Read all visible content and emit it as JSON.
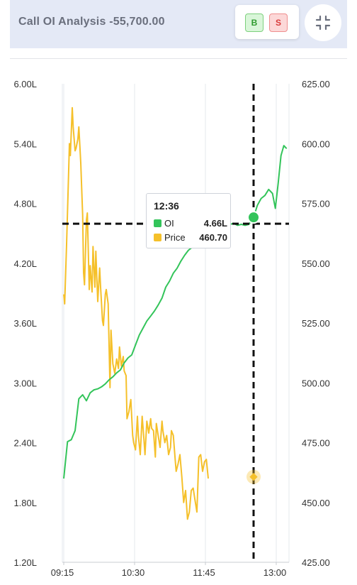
{
  "header": {
    "title": "Call OI Analysis -55,700.00",
    "buy_label": "B",
    "sell_label": "S"
  },
  "colors": {
    "oi": "#33c45a",
    "price": "#f5c02a",
    "crosshair": "#111111",
    "header_bg": "#e4e9f6"
  },
  "icons": {
    "collapse": "collapse-arrows-icon"
  },
  "tooltip": {
    "time": "12:36",
    "oi_label": "OI",
    "oi_value": "4.66L",
    "price_label": "Price",
    "price_value": "460.70"
  },
  "chart_data": {
    "type": "line",
    "x_ticks": [
      "09:15",
      "10:30",
      "11:45",
      "13:00"
    ],
    "left_axis": {
      "ticks": [
        "6.00L",
        "5.40L",
        "4.80L",
        "4.20L",
        "3.60L",
        "3.00L",
        "2.40L",
        "1.80L",
        "1.20L"
      ],
      "range_lakh": [
        1.2,
        6.0
      ]
    },
    "right_axis": {
      "ticks": [
        "625.00",
        "600.00",
        "575.00",
        "550.00",
        "525.00",
        "500.00",
        "475.00",
        "450.00",
        "425.00"
      ],
      "range": [
        425,
        625
      ]
    },
    "grid": "vertical",
    "crosshair": {
      "time": "12:36",
      "oi_lakh": 4.66,
      "price": 460.7
    },
    "series": [
      {
        "name": "OI",
        "axis": "left",
        "unit": "lakh",
        "points": [
          [
            "09:15",
            2.04
          ],
          [
            "09:19",
            2.41
          ],
          [
            "09:23",
            2.43
          ],
          [
            "09:27",
            2.52
          ],
          [
            "09:31",
            2.84
          ],
          [
            "09:35",
            2.88
          ],
          [
            "09:39",
            2.82
          ],
          [
            "09:43",
            2.9
          ],
          [
            "09:47",
            2.93
          ],
          [
            "09:51",
            2.94
          ],
          [
            "09:55",
            2.96
          ],
          [
            "09:59",
            2.99
          ],
          [
            "10:03",
            3.03
          ],
          [
            "10:07",
            3.06
          ],
          [
            "10:11",
            3.1
          ],
          [
            "10:15",
            3.13
          ],
          [
            "10:19",
            3.2
          ],
          [
            "10:23",
            3.25
          ],
          [
            "10:27",
            3.28
          ],
          [
            "10:31",
            3.38
          ],
          [
            "10:35",
            3.48
          ],
          [
            "10:39",
            3.55
          ],
          [
            "10:43",
            3.62
          ],
          [
            "10:47",
            3.67
          ],
          [
            "10:51",
            3.72
          ],
          [
            "10:55",
            3.78
          ],
          [
            "10:59",
            3.85
          ],
          [
            "11:03",
            3.96
          ],
          [
            "11:07",
            4.02
          ],
          [
            "11:11",
            4.1
          ],
          [
            "11:15",
            4.15
          ],
          [
            "11:19",
            4.22
          ],
          [
            "11:23",
            4.28
          ],
          [
            "11:27",
            4.33
          ],
          [
            "11:31",
            4.36
          ],
          [
            "11:35",
            4.4
          ],
          [
            "11:39",
            4.45
          ],
          [
            "11:43",
            4.52
          ],
          [
            "11:47",
            4.55
          ],
          [
            "11:51",
            4.58
          ],
          [
            "11:55",
            4.61
          ],
          [
            "11:59",
            4.62
          ],
          [
            "12:03",
            4.61
          ],
          [
            "12:07",
            4.6
          ],
          [
            "12:11",
            4.59
          ],
          [
            "12:15",
            4.6
          ],
          [
            "12:19",
            4.58
          ],
          [
            "12:23",
            4.59
          ],
          [
            "12:27",
            4.58
          ],
          [
            "12:31",
            4.59
          ],
          [
            "12:36",
            4.66
          ],
          [
            "12:40",
            4.78
          ],
          [
            "12:44",
            4.85
          ],
          [
            "12:48",
            4.88
          ],
          [
            "12:52",
            4.94
          ],
          [
            "12:56",
            4.9
          ],
          [
            "12:59",
            4.75
          ],
          [
            "13:02",
            5.0
          ],
          [
            "13:05",
            5.28
          ],
          [
            "13:08",
            5.38
          ],
          [
            "13:11",
            5.35
          ]
        ]
      },
      {
        "name": "Price",
        "axis": "right",
        "points": [
          [
            "09:15",
            537
          ],
          [
            "09:16",
            533
          ],
          [
            "09:18",
            558
          ],
          [
            "09:20",
            586
          ],
          [
            "09:21",
            600
          ],
          [
            "09:22",
            595
          ],
          [
            "09:24",
            615
          ],
          [
            "09:25",
            607
          ],
          [
            "09:27",
            597
          ],
          [
            "09:28",
            598
          ],
          [
            "09:30",
            602
          ],
          [
            "09:31",
            607
          ],
          [
            "09:33",
            592
          ],
          [
            "09:35",
            570
          ],
          [
            "09:36",
            546
          ],
          [
            "09:37",
            541
          ],
          [
            "09:39",
            568
          ],
          [
            "09:40",
            571
          ],
          [
            "09:42",
            539
          ],
          [
            "09:43",
            549
          ],
          [
            "09:45",
            538
          ],
          [
            "09:46",
            557
          ],
          [
            "09:48",
            540
          ],
          [
            "09:49",
            555
          ],
          [
            "09:51",
            534
          ],
          [
            "09:53",
            548
          ],
          [
            "09:54",
            540
          ],
          [
            "09:56",
            526
          ],
          [
            "09:57",
            524
          ],
          [
            "09:59",
            537
          ],
          [
            "10:00",
            539
          ],
          [
            "10:02",
            533
          ],
          [
            "10:04",
            498
          ],
          [
            "10:05",
            522
          ],
          [
            "10:07",
            508
          ],
          [
            "10:09",
            504
          ],
          [
            "10:11",
            510
          ],
          [
            "10:13",
            506
          ],
          [
            "10:14",
            515
          ],
          [
            "10:16",
            507
          ],
          [
            "10:18",
            511
          ],
          [
            "10:19",
            505
          ],
          [
            "10:21",
            503
          ],
          [
            "10:22",
            485
          ],
          [
            "10:24",
            488
          ],
          [
            "10:26",
            493
          ],
          [
            "10:28",
            478
          ],
          [
            "10:29",
            475
          ],
          [
            "10:31",
            472
          ],
          [
            "10:33",
            486
          ],
          [
            "10:34",
            478
          ],
          [
            "10:36",
            470
          ],
          [
            "10:38",
            486
          ],
          [
            "10:40",
            476
          ],
          [
            "10:41",
            470
          ],
          [
            "10:43",
            484
          ],
          [
            "10:45",
            479
          ],
          [
            "10:47",
            485
          ],
          [
            "10:48",
            481
          ],
          [
            "10:50",
            480
          ],
          [
            "10:52",
            469
          ],
          [
            "10:53",
            483
          ],
          [
            "10:55",
            478
          ],
          [
            "10:57",
            473
          ],
          [
            "10:59",
            484
          ],
          [
            "11:00",
            480
          ],
          [
            "11:02",
            475
          ],
          [
            "11:04",
            478
          ],
          [
            "11:06",
            470
          ],
          [
            "11:08",
            473
          ],
          [
            "11:09",
            480
          ],
          [
            "11:11",
            478
          ],
          [
            "11:13",
            468
          ],
          [
            "11:14",
            463
          ],
          [
            "11:16",
            466
          ],
          [
            "11:18",
            470
          ],
          [
            "11:20",
            460.7
          ],
          [
            "11:22",
            450
          ],
          [
            "11:24",
            455
          ],
          [
            "11:26",
            443
          ],
          [
            "11:28",
            446
          ],
          [
            "11:30",
            455
          ],
          [
            "11:32",
            456
          ],
          [
            "11:34",
            451
          ],
          [
            "11:36",
            446
          ],
          [
            "11:38",
            469
          ],
          [
            "11:40",
            470
          ],
          [
            "11:42",
            463
          ],
          [
            "11:44",
            467
          ],
          [
            "11:46",
            468
          ],
          [
            "11:48",
            460
          ]
        ]
      }
    ]
  }
}
